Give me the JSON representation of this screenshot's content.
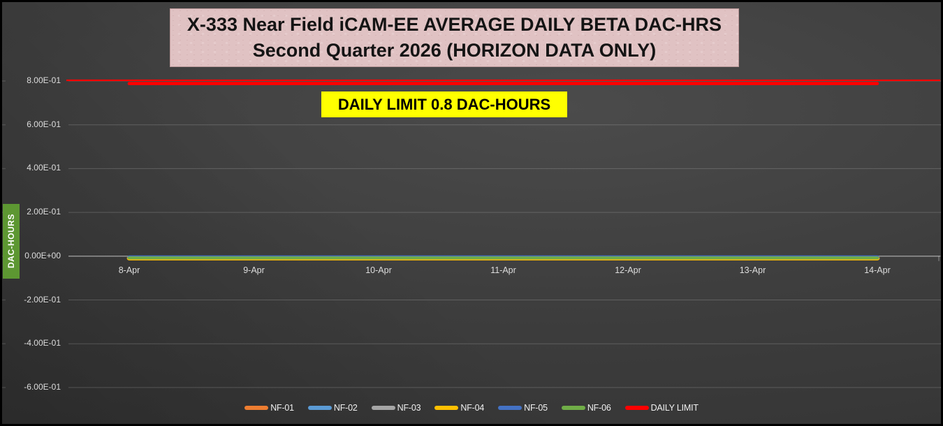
{
  "title": {
    "line1": "X-333 Near Field iCAM-EE AVERAGE DAILY BETA DAC-HRS",
    "line2": "Second Quarter 2026 (HORIZON DATA ONLY)"
  },
  "limit_banner": "DAILY LIMIT 0.8 DAC-HOURS",
  "chart_data": {
    "type": "line",
    "title": "X-333 Near Field iCAM-EE AVERAGE DAILY BETA DAC-HRS Second Quarter 2026 (HORIZON DATA ONLY)",
    "ylabel": "DAC-HOURS",
    "xlabel": "",
    "categories": [
      "8-Apr",
      "9-Apr",
      "10-Apr",
      "11-Apr",
      "12-Apr",
      "13-Apr",
      "14-Apr"
    ],
    "series": [
      {
        "name": "NF-01",
        "color": "#ED7D31",
        "values": [
          0,
          0,
          0,
          0,
          0,
          0,
          0
        ]
      },
      {
        "name": "NF-02",
        "color": "#5B9BD5",
        "values": [
          0,
          0,
          0,
          0,
          0,
          0,
          0
        ]
      },
      {
        "name": "NF-03",
        "color": "#A5A5A5",
        "values": [
          0,
          0,
          0,
          0,
          0,
          0,
          0
        ]
      },
      {
        "name": "NF-04",
        "color": "#FFC000",
        "values": [
          0,
          0,
          0,
          0,
          0,
          0,
          0
        ]
      },
      {
        "name": "NF-05",
        "color": "#4472C4",
        "values": [
          0,
          0,
          0,
          0,
          0,
          0,
          0
        ]
      },
      {
        "name": "NF-06",
        "color": "#70AD47",
        "values": [
          0,
          0,
          0,
          0,
          0,
          0,
          0
        ]
      }
    ],
    "daily_limit": {
      "name": "DAILY LIMIT",
      "color": "#FF0000",
      "value": 0.8
    },
    "yticks": [
      {
        "label": "8.00E-01",
        "value": 0.8
      },
      {
        "label": "6.00E-01",
        "value": 0.6
      },
      {
        "label": "4.00E-01",
        "value": 0.4
      },
      {
        "label": "2.00E-01",
        "value": 0.2
      },
      {
        "label": "0.00E+00",
        "value": 0.0
      },
      {
        "label": "-2.00E-01",
        "value": -0.2
      },
      {
        "label": "-4.00E-01",
        "value": -0.4
      },
      {
        "label": "-6.00E-01",
        "value": -0.6
      }
    ],
    "ylim": [
      -0.75,
      0.85
    ],
    "grid": true,
    "legend_position": "bottom"
  }
}
